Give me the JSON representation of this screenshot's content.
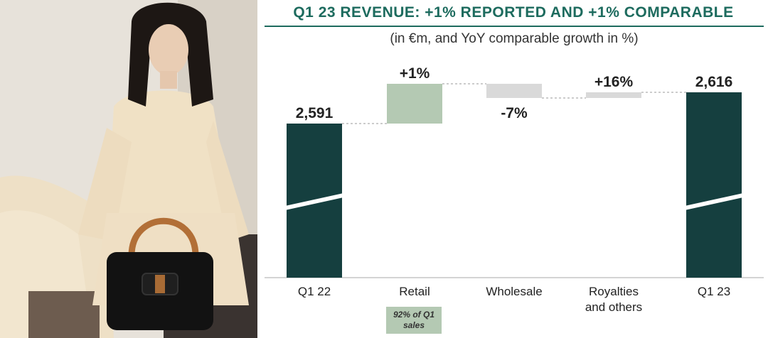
{
  "chart_data": {
    "type": "waterfall",
    "title": "Q1 23 REVENUE: +1% REPORTED AND +1% COMPARABLE",
    "subtitle": "(in €m, and YoY comparable growth in %)",
    "categories": [
      "Q1 22",
      "Retail",
      "Wholesale",
      "Royalties and others",
      "Q1 23"
    ],
    "category_lines": [
      [
        "Q1 22"
      ],
      [
        "Retail"
      ],
      [
        "Wholesale"
      ],
      [
        "Royalties",
        "and others"
      ],
      [
        "Q1 23"
      ]
    ],
    "bars": [
      {
        "kind": "total",
        "value": 2591,
        "label": "2,591",
        "color": "#153f3f"
      },
      {
        "kind": "delta",
        "growth_pct": 1,
        "label": "+1%",
        "direction": "up",
        "color": "#b4c9b3"
      },
      {
        "kind": "delta",
        "growth_pct": -7,
        "label": "-7%",
        "direction": "down",
        "color": "#d9d9d9"
      },
      {
        "kind": "delta",
        "growth_pct": 16,
        "label": "+16%",
        "direction": "up",
        "color": "#d9d9d9"
      },
      {
        "kind": "total",
        "value": 2616,
        "label": "2,616",
        "color": "#153f3f"
      }
    ],
    "axis_break": true,
    "annotation": "92% of Q1 sales"
  }
}
